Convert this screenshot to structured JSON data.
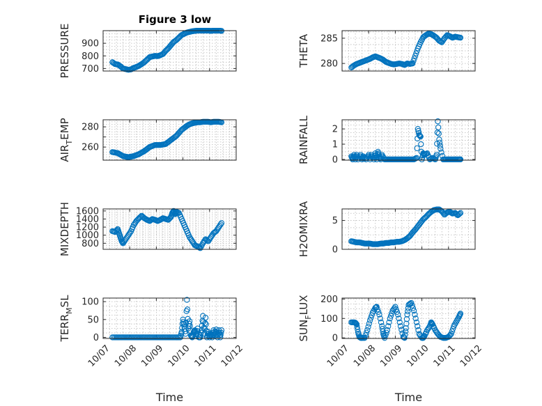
{
  "figure": {
    "title": "Figure 3 low",
    "marker_color": "#0072bd",
    "axis_color": "#262626",
    "grid_color": "#b9b9b9",
    "xlabel": "Time"
  },
  "chart_data": [
    {
      "type": "scatter",
      "id": "pressure",
      "title": "Figure 3 low",
      "ylabel": "PRESSURE",
      "xlabel": "",
      "xlim": [
        "10/07",
        "10/12"
      ],
      "ylim": [
        680,
        1000
      ],
      "yticks": [
        700,
        800,
        900
      ],
      "x_tick_labels_visible": false,
      "grid": true,
      "series": [
        {
          "x": [
            7.35,
            7.45,
            7.55,
            7.65,
            7.75,
            7.85,
            7.95,
            8.05,
            8.15,
            8.25,
            8.35,
            8.45,
            8.55,
            8.65,
            8.75,
            8.85,
            8.95,
            9.05,
            9.15,
            9.25,
            9.35,
            9.45,
            9.55,
            9.65,
            9.75,
            9.85,
            9.95,
            10.05,
            10.15,
            10.25,
            10.35,
            10.45,
            10.55,
            10.65,
            10.75,
            10.85,
            10.95,
            11.05,
            11.15,
            11.25,
            11.35,
            11.45
          ],
          "y": [
            750,
            735,
            732,
            718,
            700,
            695,
            690,
            693,
            705,
            712,
            722,
            735,
            750,
            770,
            790,
            795,
            800,
            798,
            805,
            815,
            840,
            860,
            885,
            910,
            925,
            945,
            965,
            975,
            985,
            990,
            995,
            998,
            1000,
            1000,
            1000,
            1000,
            1000,
            998,
            1000,
            1000,
            1000,
            998
          ]
        }
      ]
    },
    {
      "type": "scatter",
      "id": "theta",
      "title": "",
      "ylabel": "THETA",
      "xlabel": "",
      "xlim": [
        "10/07",
        "10/12"
      ],
      "ylim": [
        278.5,
        286.5
      ],
      "yticks": [
        280,
        285
      ],
      "x_tick_labels_visible": false,
      "grid": true,
      "series": [
        {
          "x": [
            7.35,
            7.45,
            7.55,
            7.65,
            7.75,
            7.85,
            7.95,
            8.05,
            8.15,
            8.25,
            8.35,
            8.45,
            8.55,
            8.65,
            8.75,
            8.85,
            8.95,
            9.05,
            9.15,
            9.25,
            9.35,
            9.45,
            9.55,
            9.65,
            9.75,
            9.85,
            9.95,
            10.05,
            10.15,
            10.25,
            10.35,
            10.45,
            10.55,
            10.65,
            10.75,
            10.85,
            10.95,
            11.05,
            11.15,
            11.25,
            11.35,
            11.45
          ],
          "y": [
            279.2,
            279.6,
            279.9,
            280.1,
            280.3,
            280.5,
            280.7,
            280.9,
            281.2,
            281.4,
            281.2,
            281.0,
            280.7,
            280.3,
            280.1,
            279.9,
            279.8,
            279.9,
            280.0,
            279.9,
            279.7,
            280.0,
            279.9,
            280.0,
            281.5,
            283.0,
            284.2,
            285.2,
            285.6,
            285.9,
            285.8,
            285.5,
            285.1,
            284.5,
            284.2,
            285.0,
            285.6,
            285.4,
            285.1,
            285.3,
            285.2,
            285.1
          ]
        }
      ]
    },
    {
      "type": "scatter",
      "id": "air_temp",
      "title": "",
      "ylabel": "AIR_TEMP",
      "ylabel_display": {
        "main": "AIR",
        "sub": "T",
        "rest": "EMP"
      },
      "xlabel": "",
      "xlim": [
        "10/07",
        "10/12"
      ],
      "ylim": [
        247,
        287
      ],
      "yticks": [
        260,
        270,
        280
      ],
      "ytick_labels": [
        "260",
        "",
        "280"
      ],
      "x_tick_labels_visible": false,
      "grid": true,
      "series": [
        {
          "x": [
            7.35,
            7.45,
            7.55,
            7.65,
            7.75,
            7.85,
            7.95,
            8.05,
            8.15,
            8.25,
            8.35,
            8.45,
            8.55,
            8.65,
            8.75,
            8.85,
            8.95,
            9.05,
            9.15,
            9.25,
            9.35,
            9.45,
            9.55,
            9.65,
            9.75,
            9.85,
            9.95,
            10.05,
            10.15,
            10.25,
            10.35,
            10.45,
            10.55,
            10.65,
            10.75,
            10.85,
            10.95,
            11.05,
            11.15,
            11.25,
            11.35,
            11.45
          ],
          "y": [
            255,
            254.5,
            254,
            252.5,
            251,
            250.5,
            250,
            250.5,
            251,
            252,
            253,
            254.5,
            256,
            258,
            260,
            261,
            262,
            262,
            262,
            262.5,
            263,
            265,
            267,
            269,
            271,
            274,
            277,
            279,
            281,
            282.5,
            283.5,
            284,
            284.5,
            284.5,
            285,
            285,
            285,
            284.5,
            285,
            285,
            285,
            284.5
          ]
        }
      ]
    },
    {
      "type": "scatter",
      "id": "rainfall",
      "title": "",
      "ylabel": "RAINFALL",
      "xlabel": "",
      "xlim": [
        "10/07",
        "10/12"
      ],
      "ylim": [
        -0.05,
        2.6
      ],
      "yticks": [
        0,
        1,
        2
      ],
      "x_tick_labels_visible": false,
      "grid": true,
      "series": [
        {
          "x": [
            7.35,
            7.4,
            7.45,
            7.5,
            7.55,
            7.6,
            7.7,
            7.75,
            7.8,
            7.9,
            8.0,
            8.05,
            8.1,
            8.2,
            8.25,
            8.3,
            8.35,
            8.4,
            8.45,
            8.5,
            8.6,
            8.7,
            8.8,
            8.9,
            9.0,
            9.1,
            9.2,
            9.3,
            9.4,
            9.5,
            9.6,
            9.7,
            9.8,
            9.85,
            9.9,
            9.95,
            10.0,
            10.05,
            10.1,
            10.2,
            10.3,
            10.4,
            10.5,
            10.55,
            10.6,
            10.65,
            10.7,
            10.8,
            10.9,
            11.0,
            11.1,
            11.2,
            11.3,
            11.4,
            11.45
          ],
          "y": [
            0.2,
            0.0,
            0.3,
            0.0,
            0.3,
            0.0,
            0.3,
            0.0,
            0.2,
            0.0,
            0.3,
            0.0,
            0.3,
            0.0,
            0.4,
            0.0,
            0.5,
            0.2,
            0.0,
            0.3,
            0.0,
            0.0,
            0.0,
            0.0,
            0.0,
            0.0,
            0.0,
            0.0,
            0.0,
            0.0,
            0.0,
            0.0,
            0.1,
            2.0,
            1.6,
            1.5,
            0.0,
            0.4,
            0.3,
            0.4,
            0.0,
            0.1,
            0.0,
            0.3,
            2.5,
            1.3,
            0.7,
            0.0,
            0.0,
            0.0,
            0.0,
            0.0,
            0.0,
            0.0,
            0.0
          ]
        }
      ]
    },
    {
      "type": "scatter",
      "id": "mixdepth",
      "title": "",
      "ylabel": "MIXDEPTH",
      "xlabel": "",
      "xlim": [
        "10/07",
        "10/12"
      ],
      "ylim": [
        650,
        1650
      ],
      "yticks": [
        800,
        1000,
        1200,
        1400,
        1600
      ],
      "x_tick_labels_visible": false,
      "grid": true,
      "series": [
        {
          "x": [
            7.35,
            7.45,
            7.55,
            7.6,
            7.65,
            7.7,
            7.75,
            7.85,
            7.95,
            8.05,
            8.15,
            8.25,
            8.35,
            8.45,
            8.55,
            8.65,
            8.75,
            8.85,
            8.95,
            9.05,
            9.15,
            9.25,
            9.35,
            9.45,
            9.55,
            9.6,
            9.65,
            9.7,
            9.75,
            9.85,
            9.95,
            10.05,
            10.15,
            10.25,
            10.35,
            10.45,
            10.55,
            10.65,
            10.75,
            10.85,
            10.95,
            11.05,
            11.15,
            11.25,
            11.35,
            11.45
          ],
          "y": [
            1100,
            1080,
            1150,
            1050,
            950,
            850,
            800,
            900,
            1000,
            1100,
            1250,
            1350,
            1420,
            1480,
            1420,
            1380,
            1350,
            1400,
            1380,
            1350,
            1380,
            1420,
            1400,
            1380,
            1450,
            1550,
            1600,
            1520,
            1580,
            1550,
            1400,
            1250,
            1100,
            950,
            850,
            750,
            720,
            680,
            800,
            900,
            850,
            950,
            1050,
            1100,
            1200,
            1300
          ]
        }
      ]
    },
    {
      "type": "scatter",
      "id": "h2omixra",
      "title": "",
      "ylabel": "H2OMIXRA",
      "xlabel": "",
      "xlim": [
        "10/07",
        "10/12"
      ],
      "ylim": [
        0,
        7
      ],
      "yticks": [
        0,
        5
      ],
      "x_tick_labels_visible": false,
      "grid": true,
      "series": [
        {
          "x": [
            7.35,
            7.45,
            7.55,
            7.65,
            7.75,
            7.85,
            7.95,
            8.05,
            8.15,
            8.25,
            8.35,
            8.45,
            8.55,
            8.65,
            8.75,
            8.85,
            8.95,
            9.05,
            9.15,
            9.25,
            9.35,
            9.45,
            9.55,
            9.65,
            9.75,
            9.85,
            9.95,
            10.05,
            10.15,
            10.25,
            10.35,
            10.45,
            10.55,
            10.65,
            10.75,
            10.85,
            10.95,
            11.05,
            11.15,
            11.25,
            11.35,
            11.45
          ],
          "y": [
            1.4,
            1.3,
            1.2,
            1.2,
            1.1,
            1.0,
            1.0,
            1.0,
            0.9,
            0.9,
            0.9,
            1.0,
            1.0,
            1.1,
            1.1,
            1.2,
            1.2,
            1.3,
            1.3,
            1.4,
            1.6,
            1.9,
            2.3,
            2.9,
            3.4,
            4.0,
            4.6,
            5.2,
            5.6,
            6.1,
            6.5,
            6.8,
            6.9,
            6.9,
            6.6,
            6.0,
            6.4,
            6.5,
            6.2,
            6.3,
            5.9,
            6.3
          ]
        }
      ]
    },
    {
      "type": "scatter",
      "id": "terr_msl",
      "title": "",
      "ylabel": "TERR_MSL",
      "ylabel_display": {
        "main": "TERR",
        "sub": "M",
        "rest": "SL"
      },
      "xlabel": "Time",
      "xlim": [
        "10/07",
        "10/12"
      ],
      "ylim": [
        -3,
        110
      ],
      "yticks": [
        0,
        50,
        100
      ],
      "x_tick_labels_visible": true,
      "xticks": [
        "10/07",
        "10/08",
        "10/09",
        "10/10",
        "10/11",
        "10/12"
      ],
      "grid": true,
      "series": [
        {
          "x": [
            7.35,
            7.5,
            7.65,
            7.8,
            7.95,
            8.1,
            8.25,
            8.4,
            8.55,
            8.7,
            8.85,
            9.0,
            9.15,
            9.3,
            9.45,
            9.6,
            9.75,
            9.9,
            9.95,
            10.0,
            10.05,
            10.1,
            10.15,
            10.2,
            10.25,
            10.3,
            10.35,
            10.4,
            10.45,
            10.5,
            10.55,
            10.6,
            10.65,
            10.7,
            10.75,
            10.8,
            10.85,
            10.9,
            10.95,
            11.0,
            11.05,
            11.1,
            11.15,
            11.2,
            11.25,
            11.3,
            11.35,
            11.4,
            11.45
          ],
          "y": [
            0,
            0,
            0,
            0,
            0,
            0,
            0,
            0,
            0,
            0,
            0,
            0,
            0,
            0,
            0,
            0,
            0,
            0,
            15,
            50,
            30,
            10,
            105,
            25,
            45,
            5,
            0,
            15,
            20,
            3,
            25,
            0,
            0,
            20,
            60,
            10,
            55,
            0,
            15,
            0,
            10,
            0,
            20,
            5,
            22,
            0,
            20,
            0,
            20
          ]
        }
      ]
    },
    {
      "type": "scatter",
      "id": "sun_flux",
      "title": "",
      "ylabel": "SUN_FLUX",
      "ylabel_display": {
        "main": "SUN",
        "sub": "F",
        "rest": "LUX"
      },
      "xlabel": "Time",
      "xlim": [
        "10/07",
        "10/12"
      ],
      "ylim": [
        -3,
        205
      ],
      "yticks": [
        0,
        100,
        200
      ],
      "x_tick_labels_visible": true,
      "xticks": [
        "10/07",
        "10/08",
        "10/09",
        "10/10",
        "10/11",
        "10/12"
      ],
      "grid": true,
      "series": [
        {
          "x": [
            7.35,
            7.45,
            7.5,
            7.55,
            7.6,
            7.65,
            7.7,
            7.75,
            7.85,
            7.95,
            8.05,
            8.15,
            8.25,
            8.3,
            8.4,
            8.5,
            8.55,
            8.6,
            8.7,
            8.8,
            8.9,
            9.0,
            9.1,
            9.2,
            9.3,
            9.35,
            9.4,
            9.45,
            9.5,
            9.6,
            9.7,
            9.8,
            9.9,
            10.0,
            10.05,
            10.1,
            10.2,
            10.3,
            10.35,
            10.4,
            10.5,
            10.6,
            10.7,
            10.8,
            10.9,
            11.0,
            11.1,
            11.2,
            11.3,
            11.4,
            11.45
          ],
          "y": [
            80,
            80,
            78,
            70,
            30,
            5,
            0,
            0,
            0,
            40,
            90,
            130,
            155,
            160,
            120,
            60,
            20,
            0,
            40,
            100,
            140,
            160,
            120,
            60,
            5,
            0,
            50,
            120,
            170,
            180,
            140,
            80,
            20,
            0,
            0,
            10,
            40,
            60,
            80,
            70,
            40,
            20,
            5,
            0,
            0,
            5,
            20,
            60,
            85,
            110,
            125
          ]
        }
      ]
    }
  ]
}
